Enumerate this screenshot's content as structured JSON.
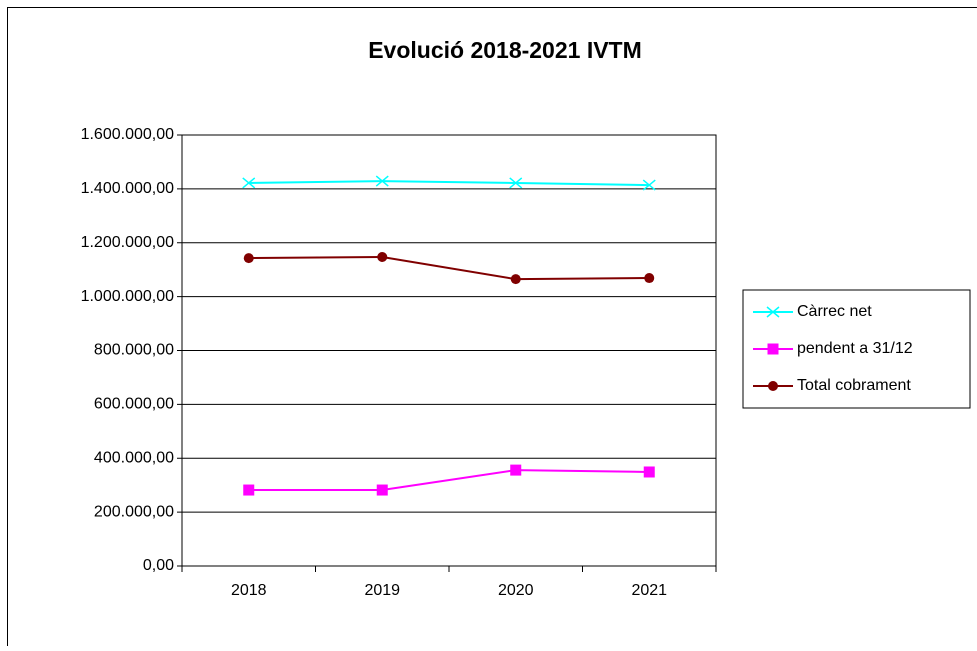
{
  "chart_data": {
    "type": "line",
    "title": "Evolució 2018-2021 IVTM",
    "categories": [
      "2018",
      "2019",
      "2020",
      "2021"
    ],
    "series": [
      {
        "name": "Càrrec net",
        "color": "#00ffff",
        "marker": "x",
        "values": [
          1422000,
          1429000,
          1422000,
          1414000
        ]
      },
      {
        "name": "pendent a 31/12",
        "color": "#ff00ff",
        "marker": "square",
        "values": [
          282000,
          282000,
          356000,
          349000
        ]
      },
      {
        "name": "Total cobrament",
        "color": "#800000",
        "marker": "circle",
        "values": [
          1143000,
          1147000,
          1065000,
          1069000
        ]
      }
    ],
    "ylim": [
      0,
      1600000
    ],
    "yticks": [
      {
        "value": 0,
        "label": "0,00"
      },
      {
        "value": 200000,
        "label": "200.000,00"
      },
      {
        "value": 400000,
        "label": "400.000,00"
      },
      {
        "value": 600000,
        "label": "600.000,00"
      },
      {
        "value": 800000,
        "label": "800.000,00"
      },
      {
        "value": 1000000,
        "label": "1.000.000,00"
      },
      {
        "value": 1200000,
        "label": "1.200.000,00"
      },
      {
        "value": 1400000,
        "label": "1.400.000,00"
      },
      {
        "value": 1600000,
        "label": "1.600.000,00"
      }
    ],
    "grid": true,
    "legend": "right"
  }
}
